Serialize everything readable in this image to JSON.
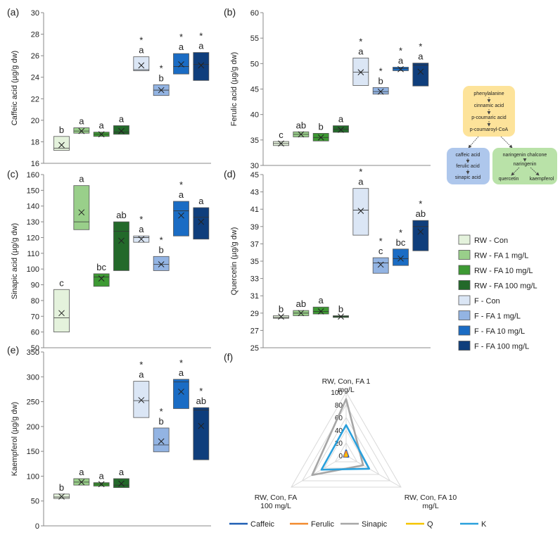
{
  "panel_labels": [
    "(a)",
    "(b)",
    "(c)",
    "(d)",
    "(e)",
    "(f)"
  ],
  "legend": {
    "items": [
      {
        "label": "RW - Con",
        "color": "#e4f2dc"
      },
      {
        "label": "RW - FA 1 mg/L",
        "color": "#99cf8a"
      },
      {
        "label": "RW - FA 10 mg/L",
        "color": "#3d9a33"
      },
      {
        "label": "RW - FA 100 mg/L",
        "color": "#23692a"
      },
      {
        "label": "F - Con",
        "color": "#dbe6f5"
      },
      {
        "label": "F - FA 1 mg/L",
        "color": "#93b4e3"
      },
      {
        "label": "F - FA 10 mg/L",
        "color": "#1a6cc4"
      },
      {
        "label": "F - FA 100 mg/L",
        "color": "#0f3e7c"
      }
    ]
  },
  "pathway": {
    "top": [
      "phenylalanine",
      "cinnamic acid",
      "p-coumaric acid",
      "p-coumaroyl-CoA"
    ],
    "left": [
      "caffeic acid",
      "ferulic acid",
      "sinapic acid"
    ],
    "right_top": [
      "naringenin chalcone",
      "naringenin"
    ],
    "right_bottom": [
      "quercetin",
      "kaempferol"
    ],
    "colors": {
      "top": "#fde39a",
      "left": "#aec7ec",
      "right": "#b9e2a8"
    }
  },
  "chart_data": [
    {
      "type": "box",
      "panel": "(a)",
      "ylabel": "Caffeic acid (µg/g dw)",
      "ylim": [
        16,
        30
      ],
      "ticks": [
        16,
        18,
        20,
        22,
        24,
        26,
        28,
        30
      ],
      "boxes": [
        {
          "q1": 17.2,
          "median": 17.4,
          "q3": 18.5,
          "mean": 17.7,
          "letter": "b",
          "star": false
        },
        {
          "q1": 18.8,
          "median": 19.0,
          "q3": 19.3,
          "mean": 19.0,
          "letter": "a",
          "star": false
        },
        {
          "q1": 18.5,
          "median": 18.7,
          "q3": 18.9,
          "mean": 18.7,
          "letter": "a",
          "star": false
        },
        {
          "q1": 18.7,
          "median": 18.9,
          "q3": 19.5,
          "mean": 19.0,
          "letter": "a",
          "star": false
        },
        {
          "q1": 24.6,
          "median": 24.7,
          "q3": 25.9,
          "mean": 25.1,
          "letter": "a",
          "star": true
        },
        {
          "q1": 22.3,
          "median": 22.8,
          "q3": 23.3,
          "mean": 22.8,
          "letter": "b",
          "star": true
        },
        {
          "q1": 24.3,
          "median": 25.0,
          "q3": 26.2,
          "mean": 25.2,
          "letter": "a",
          "star": true
        },
        {
          "q1": 23.7,
          "median": 25.2,
          "q3": 26.3,
          "mean": 25.1,
          "letter": "a",
          "star": true
        }
      ]
    },
    {
      "type": "box",
      "panel": "(b)",
      "ylabel": "Ferulic acid (µg/g dw)",
      "ylim": [
        30,
        60
      ],
      "ticks": [
        30,
        35,
        40,
        45,
        50,
        55,
        60
      ],
      "boxes": [
        {
          "q1": 33.9,
          "median": 34.3,
          "q3": 34.7,
          "mean": 34.3,
          "letter": "c",
          "star": false
        },
        {
          "q1": 35.6,
          "median": 36.1,
          "q3": 36.6,
          "mean": 36.1,
          "letter": "ab",
          "star": false
        },
        {
          "q1": 34.8,
          "median": 35.5,
          "q3": 36.3,
          "mean": 35.5,
          "letter": "b",
          "star": false
        },
        {
          "q1": 36.5,
          "median": 37.1,
          "q3": 37.8,
          "mean": 37.0,
          "letter": "a",
          "star": false
        },
        {
          "q1": 45.7,
          "median": 48.3,
          "q3": 51.1,
          "mean": 48.3,
          "letter": "a",
          "star": true
        },
        {
          "q1": 44.0,
          "median": 44.5,
          "q3": 45.3,
          "mean": 44.5,
          "letter": "b",
          "star": true
        },
        {
          "q1": 48.6,
          "median": 49.0,
          "q3": 49.3,
          "mean": 48.9,
          "letter": "a",
          "star": true
        },
        {
          "q1": 45.6,
          "median": 49.7,
          "q3": 50.1,
          "mean": 48.4,
          "letter": "a",
          "star": true
        }
      ]
    },
    {
      "type": "box",
      "panel": "(c)",
      "ylabel": "Sinapic acid (µg/g dw)",
      "ylim": [
        50,
        160
      ],
      "ticks": [
        50,
        60,
        70,
        80,
        90,
        100,
        110,
        120,
        130,
        140,
        150,
        160
      ],
      "boxes": [
        {
          "q1": 60,
          "median": 69,
          "q3": 87,
          "mean": 72,
          "letter": "c",
          "star": false
        },
        {
          "q1": 125,
          "median": 130,
          "q3": 153,
          "mean": 136,
          "letter": "a",
          "star": false
        },
        {
          "q1": 89,
          "median": 95,
          "q3": 97,
          "mean": 94,
          "letter": "bc",
          "star": false
        },
        {
          "q1": 99,
          "median": 124,
          "q3": 130,
          "mean": 118,
          "letter": "ab",
          "star": false
        },
        {
          "q1": 117,
          "median": 120,
          "q3": 121,
          "mean": 119,
          "letter": "a",
          "star": true
        },
        {
          "q1": 99,
          "median": 103,
          "q3": 108,
          "mean": 103,
          "letter": "b",
          "star": true
        },
        {
          "q1": 121,
          "median": 137,
          "q3": 143,
          "mean": 134,
          "letter": "a",
          "star": true
        },
        {
          "q1": 119,
          "median": 133,
          "q3": 139,
          "mean": 130,
          "letter": "a",
          "star": false
        }
      ]
    },
    {
      "type": "box",
      "panel": "(d)",
      "ylabel": "Quercetin (µg/g dw)",
      "ylim": [
        25,
        45
      ],
      "ticks": [
        25,
        27,
        29,
        31,
        33,
        35,
        37,
        39,
        41,
        43,
        45
      ],
      "boxes": [
        {
          "q1": 28.4,
          "median": 28.5,
          "q3": 28.7,
          "mean": 28.6,
          "letter": "b",
          "star": false
        },
        {
          "q1": 28.7,
          "median": 29.0,
          "q3": 29.3,
          "mean": 29.0,
          "letter": "ab",
          "star": false
        },
        {
          "q1": 28.9,
          "median": 29.2,
          "q3": 29.7,
          "mean": 29.2,
          "letter": "a",
          "star": false
        },
        {
          "q1": 28.5,
          "median": 28.6,
          "q3": 28.7,
          "mean": 28.6,
          "letter": "b",
          "star": false
        },
        {
          "q1": 38.0,
          "median": 40.9,
          "q3": 43.4,
          "mean": 40.8,
          "letter": "a",
          "star": true
        },
        {
          "q1": 33.6,
          "median": 34.8,
          "q3": 35.4,
          "mean": 34.6,
          "letter": "c",
          "star": true
        },
        {
          "q1": 34.5,
          "median": 35.3,
          "q3": 36.4,
          "mean": 35.3,
          "letter": "bc",
          "star": true
        },
        {
          "q1": 36.2,
          "median": 39.0,
          "q3": 39.7,
          "mean": 38.4,
          "letter": "ab",
          "star": true
        }
      ]
    },
    {
      "type": "box",
      "panel": "(e)",
      "ylabel": "Kaempferol (µg/g dw)",
      "ylim": [
        0,
        350
      ],
      "ticks": [
        0,
        50,
        100,
        150,
        200,
        250,
        300,
        350
      ],
      "boxes": [
        {
          "q1": 55,
          "median": 58,
          "q3": 64,
          "mean": 59,
          "letter": "b",
          "star": false
        },
        {
          "q1": 82,
          "median": 88,
          "q3": 95,
          "mean": 88,
          "letter": "a",
          "star": false
        },
        {
          "q1": 80,
          "median": 84,
          "q3": 87,
          "mean": 84,
          "letter": "a",
          "star": false
        },
        {
          "q1": 77,
          "median": 82,
          "q3": 95,
          "mean": 85,
          "letter": "a",
          "star": false
        },
        {
          "q1": 218,
          "median": 252,
          "q3": 291,
          "mean": 253,
          "letter": "a",
          "star": true
        },
        {
          "q1": 149,
          "median": 163,
          "q3": 197,
          "mean": 170,
          "letter": "b",
          "star": true
        },
        {
          "q1": 236,
          "median": 290,
          "q3": 295,
          "mean": 270,
          "letter": "a",
          "star": true
        },
        {
          "q1": 133,
          "median": 233,
          "q3": 238,
          "mean": 201,
          "letter": "ab",
          "star": true
        }
      ]
    },
    {
      "type": "radar",
      "panel": "(f)",
      "axes": [
        "RW, Con, FA 1 mg/L",
        "RW, Con, FA 10 mg/L",
        "RW, Con, FA 100 mg/L"
      ],
      "ticks": [
        0,
        20,
        40,
        60,
        80,
        100
      ],
      "rmax": 100,
      "series": [
        {
          "name": "Caffeic",
          "color": "#1f5fb4",
          "values": [
            8,
            4,
            4
          ]
        },
        {
          "name": "Ferulic",
          "color": "#f28a2e",
          "values": [
            6,
            2,
            3
          ]
        },
        {
          "name": "Sinapic",
          "color": "#a6a6a6",
          "values": [
            89,
            31,
            62
          ]
        },
        {
          "name": "Q",
          "color": "#f5c400",
          "values": [
            2,
            1,
            1
          ]
        },
        {
          "name": "K",
          "color": "#2aa0dc",
          "values": [
            48,
            42,
            45
          ]
        }
      ]
    }
  ]
}
